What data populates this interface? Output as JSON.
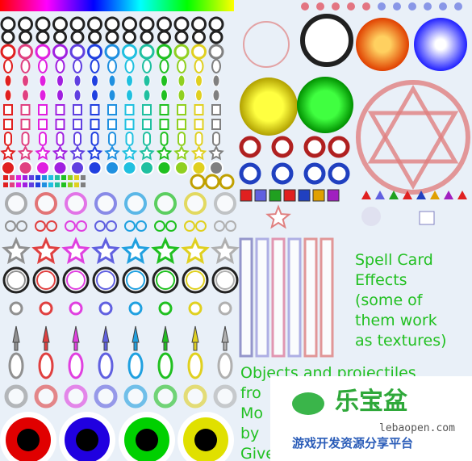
{
  "labels": {
    "spell_card": [
      "Spell Card",
      "Effects",
      "(some of",
      "them work",
      "as textures)"
    ],
    "objects": [
      "Objects and projectiles",
      "fro",
      "Mo",
      "by",
      "Give credit to ZUN and"
    ]
  },
  "watermark": {
    "logo": "乐宝盆",
    "url": "lebaopen.com",
    "slogan": "游戏开发资源分享平台"
  }
}
